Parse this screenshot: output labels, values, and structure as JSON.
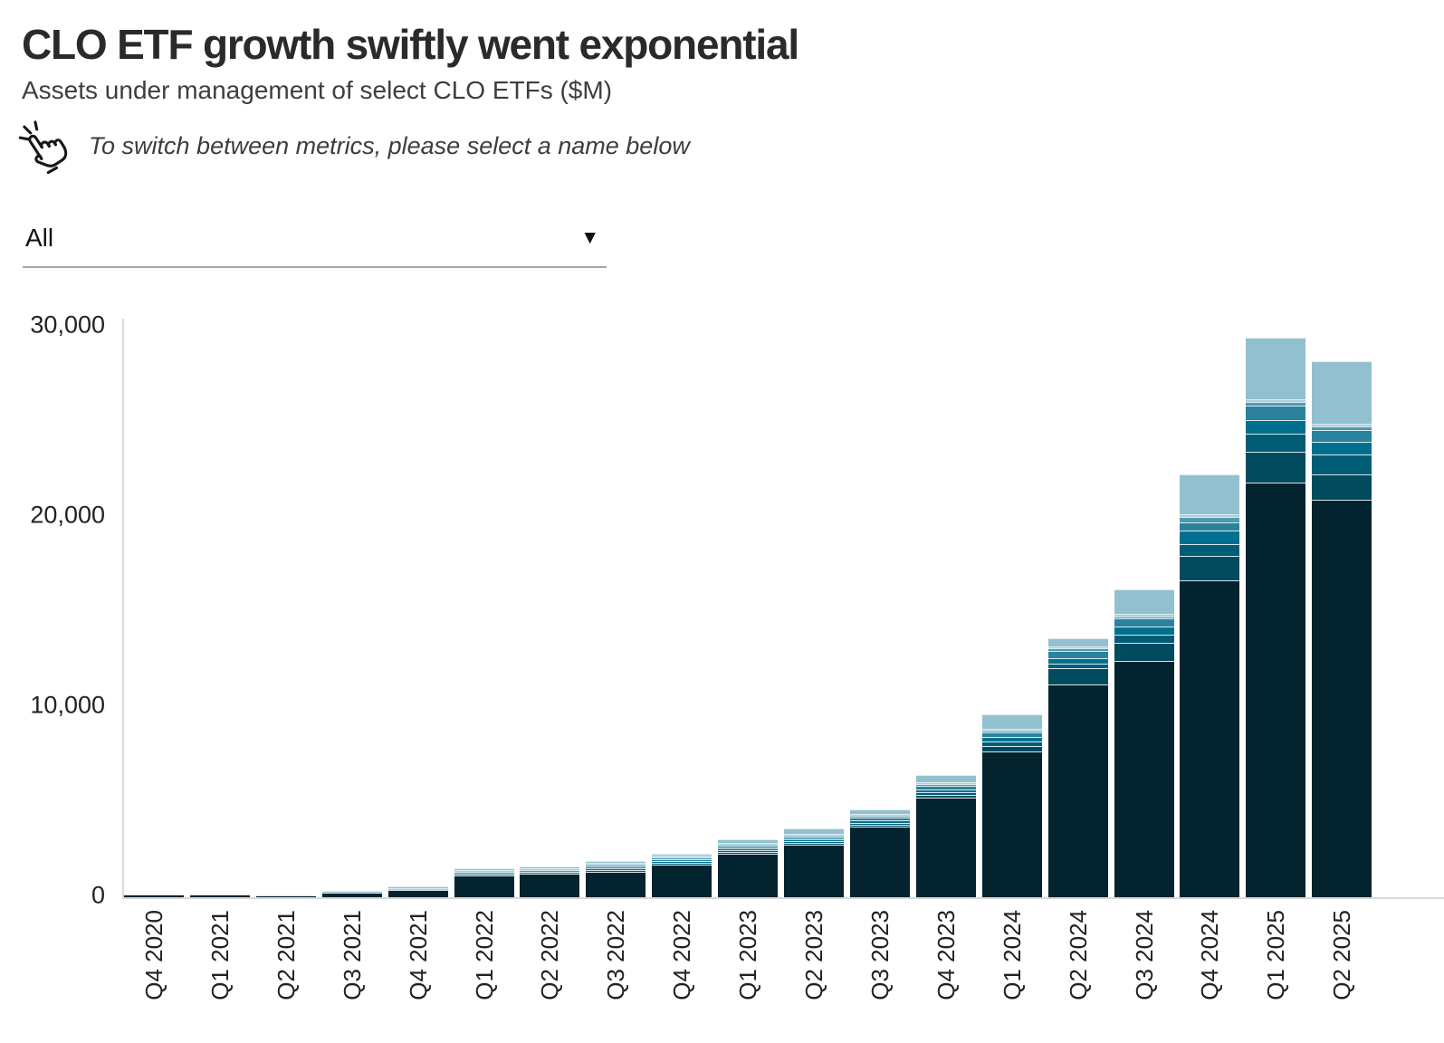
{
  "header": {
    "title": "CLO ETF growth swiftly went exponential",
    "subtitle": "Assets under management of select CLO ETFs ($M)",
    "note": "To switch between metrics, please select a name below"
  },
  "controls": {
    "metric_select": {
      "value": "All",
      "arrow": "▼"
    }
  },
  "icons": {
    "instruction": "click-hand-icon",
    "dropdown": "caret-down-icon"
  },
  "colors": {
    "axis_line": "#d9d9d9",
    "text": "#1d1d1d",
    "dropdown_underline": "#a6a6a6"
  },
  "chart_data": {
    "type": "bar",
    "stacked": true,
    "title": "CLO ETF growth swiftly went exponential",
    "subtitle": "Assets under management of select CLO ETFs ($M)",
    "unit": "$M",
    "grid": false,
    "legend": "none",
    "ylim": [
      0,
      30000
    ],
    "yticks": [
      0,
      10000,
      20000,
      30000
    ],
    "ytick_labels": [
      "0",
      "10,000",
      "20,000",
      "30,000"
    ],
    "categories": [
      "Q4 2020",
      "Q1 2021",
      "Q2 2021",
      "Q3 2021",
      "Q4 2021",
      "Q1 2022",
      "Q2 2022",
      "Q3 2022",
      "Q4 2022",
      "Q1 2023",
      "Q2 2023",
      "Q3 2023",
      "Q4 2023",
      "Q1 2024",
      "Q2 2024",
      "Q3 2024",
      "Q4 2024",
      "Q1 2025",
      "Q2 2025"
    ],
    "series": [
      {
        "name": "segment-darkest-navy",
        "color": "#03232f",
        "values": [
          120,
          130,
          110,
          250,
          380,
          1150,
          1250,
          1350,
          1700,
          2300,
          2750,
          3700,
          5250,
          7670,
          11200,
          12430,
          16670,
          21800,
          20900
        ]
      },
      {
        "name": "segment-dark-teal",
        "color": "#024a5e",
        "values": [
          0,
          0,
          0,
          0,
          0,
          0,
          0,
          0,
          0,
          30,
          60,
          100,
          150,
          280,
          860,
          950,
          1290,
          1620,
          1330
        ]
      },
      {
        "name": "segment-teal-600",
        "color": "#015d75",
        "values": [
          0,
          0,
          0,
          0,
          0,
          0,
          0,
          20,
          20,
          40,
          80,
          120,
          140,
          230,
          240,
          430,
          620,
          950,
          1050
        ]
      },
      {
        "name": "segment-teal-500",
        "color": "#01708e",
        "values": [
          0,
          0,
          0,
          0,
          0,
          0,
          0,
          20,
          30,
          50,
          90,
          130,
          150,
          240,
          290,
          430,
          710,
          710,
          670
        ]
      },
      {
        "name": "segment-teal-400",
        "color": "#2b829c",
        "values": [
          0,
          0,
          0,
          0,
          0,
          30,
          30,
          40,
          40,
          60,
          100,
          140,
          160,
          250,
          380,
          430,
          430,
          760,
          620
        ]
      },
      {
        "name": "segment-teal-300",
        "color": "#4e9ab0",
        "values": [
          0,
          0,
          0,
          0,
          0,
          30,
          30,
          30,
          30,
          40,
          50,
          60,
          70,
          100,
          120,
          100,
          290,
          190,
          190
        ]
      },
      {
        "name": "segment-pale-blue",
        "color": "#a9cfdb",
        "values": [
          0,
          0,
          0,
          0,
          10,
          20,
          20,
          20,
          30,
          40,
          50,
          60,
          60,
          90,
          100,
          140,
          140,
          140,
          140
        ]
      },
      {
        "name": "segment-light-blue",
        "color": "#93c0cf",
        "values": [
          0,
          0,
          0,
          10,
          10,
          50,
          60,
          50,
          100,
          160,
          270,
          260,
          380,
          760,
          430,
          1280,
          2100,
          3250,
          3300
        ]
      }
    ],
    "totals": [
      120,
      130,
      110,
      260,
      400,
      1280,
      1390,
      1530,
      1950,
      2720,
      3450,
      4570,
      6360,
      9620,
      13620,
      16190,
      22250,
      29420,
      28200
    ]
  }
}
